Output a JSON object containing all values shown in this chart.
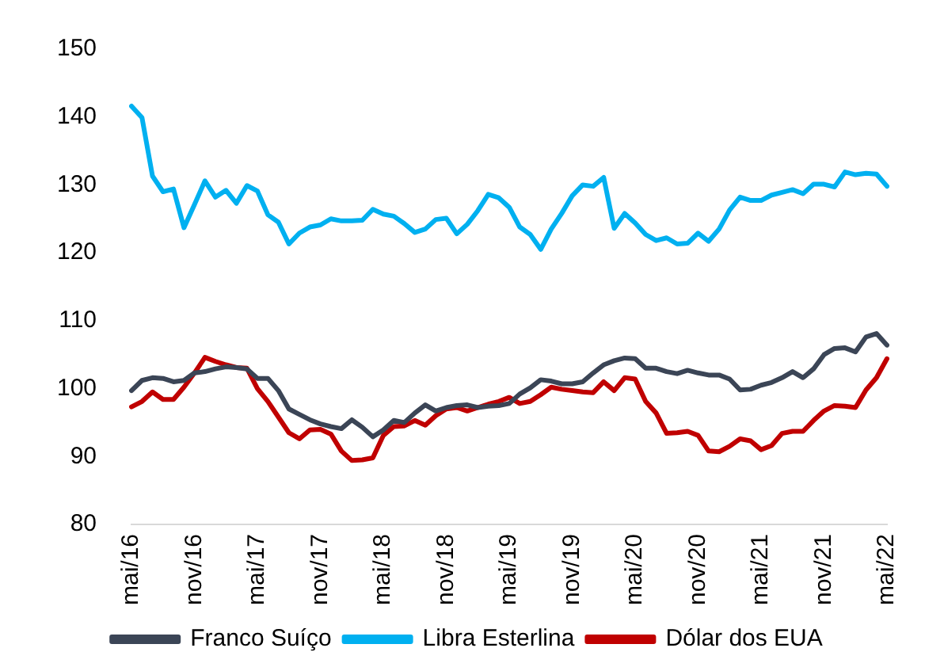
{
  "chart_data": {
    "type": "line",
    "categories": [
      "mai/16",
      null,
      null,
      null,
      null,
      null,
      "nov/16",
      null,
      null,
      null,
      null,
      null,
      "mai/17",
      null,
      null,
      null,
      null,
      null,
      "nov/17",
      null,
      null,
      null,
      null,
      null,
      "mai/18",
      null,
      null,
      null,
      null,
      null,
      "nov/18",
      null,
      null,
      null,
      null,
      null,
      "mai/19",
      null,
      null,
      null,
      null,
      null,
      "nov/19",
      null,
      null,
      null,
      null,
      null,
      "mai/20",
      null,
      null,
      null,
      null,
      null,
      "nov/20",
      null,
      null,
      null,
      null,
      null,
      "mai/21",
      null,
      null,
      null,
      null,
      null,
      "nov/21",
      null,
      null,
      null,
      null,
      null,
      "mai/22"
    ],
    "series": [
      {
        "name": "Franco Suíço",
        "color": "#3b4556",
        "values": [
          99.7,
          101.2,
          101.6,
          101.5,
          101.0,
          101.2,
          102.3,
          102.5,
          102.9,
          103.2,
          103.1,
          102.9,
          101.5,
          101.5,
          99.7,
          97.0,
          96.2,
          95.4,
          94.8,
          94.4,
          94.1,
          95.4,
          94.3,
          92.9,
          93.9,
          95.3,
          95.0,
          96.4,
          97.6,
          96.7,
          97.2,
          97.5,
          97.6,
          97.2,
          97.4,
          97.5,
          97.8,
          99.2,
          100.1,
          101.3,
          101.1,
          100.7,
          100.7,
          101.0,
          102.3,
          103.5,
          104.1,
          104.5,
          104.4,
          103.0,
          103.0,
          102.5,
          102.2,
          102.7,
          102.3,
          102.0,
          102.0,
          101.4,
          99.8,
          99.9,
          100.5,
          100.9,
          101.6,
          102.5,
          101.6,
          102.9,
          105.0,
          105.9,
          106.0,
          105.4,
          107.6,
          108.1,
          106.4
        ]
      },
      {
        "name": "Libra Esterlina",
        "color": "#00b0f0",
        "values": [
          141.6,
          139.9,
          131.3,
          129.0,
          129.4,
          123.7,
          127.1,
          130.6,
          128.2,
          129.2,
          127.3,
          129.9,
          129.1,
          125.6,
          124.5,
          121.3,
          122.9,
          123.8,
          124.1,
          125.0,
          124.7,
          124.7,
          124.8,
          126.4,
          125.7,
          125.4,
          124.3,
          123.0,
          123.5,
          124.9,
          125.1,
          122.8,
          124.2,
          126.2,
          128.6,
          128.1,
          126.7,
          123.8,
          122.7,
          120.5,
          123.5,
          125.8,
          128.4,
          130.0,
          129.8,
          131.1,
          123.6,
          125.8,
          124.4,
          122.7,
          121.8,
          122.2,
          121.3,
          121.4,
          122.9,
          121.7,
          123.5,
          126.3,
          128.2,
          127.7,
          127.7,
          128.5,
          128.9,
          129.3,
          128.7,
          130.1,
          130.1,
          129.7,
          131.9,
          131.5,
          131.7,
          131.6,
          129.8
        ]
      },
      {
        "name": "Dólar dos EUA",
        "color": "#c00000",
        "values": [
          97.3,
          98.1,
          99.5,
          98.4,
          98.4,
          100.2,
          102.3,
          104.6,
          104.0,
          103.5,
          103.1,
          103.0,
          100.0,
          98.1,
          95.8,
          93.5,
          92.6,
          93.9,
          94.0,
          93.3,
          90.8,
          89.4,
          89.5,
          89.8,
          93.1,
          94.4,
          94.5,
          95.3,
          94.6,
          96.0,
          97.0,
          97.2,
          96.7,
          97.2,
          97.7,
          98.1,
          98.7,
          97.8,
          98.1,
          99.1,
          100.2,
          99.9,
          99.7,
          99.5,
          99.4,
          101.0,
          99.7,
          101.6,
          101.4,
          98.1,
          96.4,
          93.4,
          93.5,
          93.7,
          93.1,
          90.8,
          90.7,
          91.5,
          92.6,
          92.3,
          91.0,
          91.6,
          93.4,
          93.7,
          93.7,
          95.3,
          96.7,
          97.5,
          97.4,
          97.2,
          99.8,
          101.6,
          104.4
        ]
      }
    ],
    "ylim": [
      80,
      150
    ],
    "yticks": [
      80,
      90,
      100,
      110,
      120,
      130,
      140,
      150
    ],
    "grid": false,
    "legend": "bottom",
    "marker": "none",
    "line_style": "solid"
  }
}
